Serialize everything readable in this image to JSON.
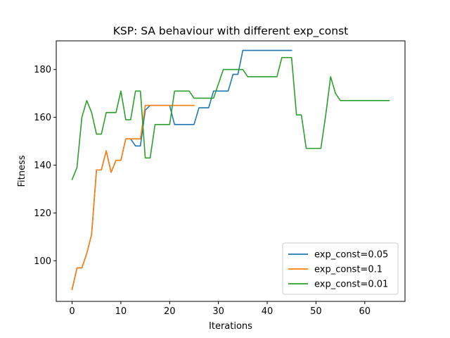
{
  "chart_data": {
    "type": "line",
    "title": "KSP: SA behaviour with different exp_const",
    "xlabel": "Iterations",
    "ylabel": "Fitness",
    "xlim": [
      -3.25,
      68.25
    ],
    "ylim": [
      83,
      192
    ],
    "xticks": [
      0,
      10,
      20,
      30,
      40,
      50,
      60
    ],
    "yticks": [
      100,
      120,
      140,
      160,
      180
    ],
    "grid": false,
    "legend_position": "lower right",
    "series": [
      {
        "name": "exp_const=0.05",
        "color": "#1f77b4",
        "x": [
          0,
          1,
          2,
          3,
          4,
          5,
          6,
          7,
          8,
          9,
          10,
          11,
          12,
          13,
          14,
          15,
          16,
          17,
          18,
          19,
          20,
          21,
          22,
          23,
          24,
          25,
          26,
          27,
          28,
          29,
          30,
          31,
          32,
          33,
          34,
          35,
          36,
          37,
          38,
          39,
          40,
          41,
          42,
          43,
          44,
          45
        ],
        "y": [
          88,
          97,
          97,
          103,
          111,
          138,
          138,
          146,
          137,
          142,
          142,
          151,
          151,
          148,
          148,
          163,
          165,
          165,
          165,
          165,
          165,
          157,
          157,
          157,
          157,
          157,
          164,
          164,
          164,
          171,
          171,
          171,
          171,
          178,
          178,
          188,
          188,
          188,
          188,
          188,
          188,
          188,
          188,
          188,
          188,
          188
        ]
      },
      {
        "name": "exp_const=0.1",
        "color": "#ff7f0e",
        "x": [
          0,
          1,
          2,
          3,
          4,
          5,
          6,
          7,
          8,
          9,
          10,
          11,
          12,
          13,
          14,
          15,
          16,
          17,
          18,
          19,
          20,
          21,
          22,
          23,
          24,
          25
        ],
        "y": [
          88,
          97,
          97,
          103,
          111,
          138,
          138,
          146,
          137,
          142,
          142,
          151,
          151,
          151,
          151,
          165,
          165,
          165,
          165,
          165,
          165,
          165,
          165,
          165,
          165,
          165
        ]
      },
      {
        "name": "exp_const=0.01",
        "color": "#2ca02c",
        "x": [
          0,
          1,
          2,
          3,
          4,
          5,
          6,
          7,
          8,
          9,
          10,
          11,
          12,
          13,
          14,
          15,
          16,
          17,
          18,
          19,
          20,
          21,
          22,
          23,
          24,
          25,
          26,
          27,
          28,
          29,
          30,
          31,
          32,
          33,
          34,
          35,
          36,
          37,
          38,
          39,
          40,
          41,
          42,
          43,
          44,
          45,
          46,
          47,
          48,
          49,
          50,
          51,
          52,
          53,
          54,
          55,
          56,
          57,
          58,
          59,
          60,
          61,
          62,
          63,
          64,
          65
        ],
        "y": [
          134,
          139,
          160,
          167,
          162,
          153,
          153,
          162,
          162,
          162,
          171,
          159,
          159,
          171,
          171,
          143,
          143,
          157,
          157,
          157,
          157,
          171,
          171,
          171,
          171,
          168,
          168,
          168,
          168,
          168,
          174,
          180,
          180,
          180,
          180,
          180,
          177,
          177,
          177,
          177,
          177,
          177,
          177,
          185,
          185,
          185,
          161,
          161,
          147,
          147,
          147,
          147,
          161,
          177,
          170,
          167,
          167,
          167,
          167,
          167,
          167,
          167,
          167,
          167,
          167,
          167
        ]
      }
    ]
  }
}
